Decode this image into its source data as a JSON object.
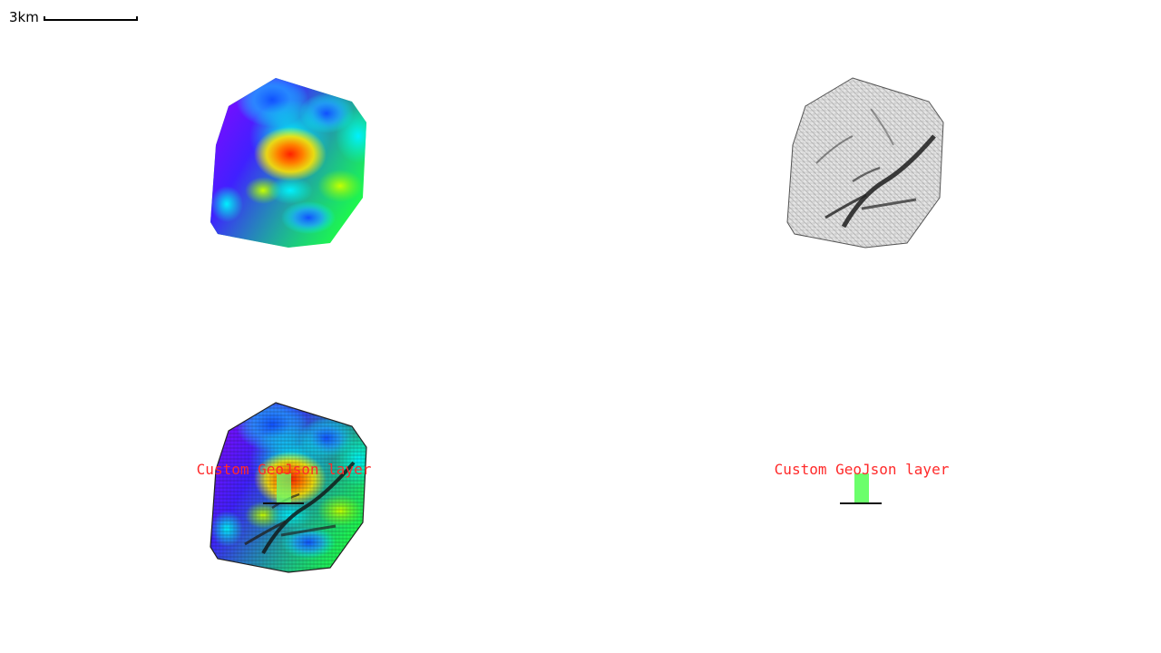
{
  "scale_bar": {
    "label": "3km"
  },
  "panels": [
    {
      "name": "colormap-panel",
      "layer": "colormap"
    },
    {
      "name": "hillshade-panel",
      "layer": "hillshade"
    },
    {
      "name": "combined-panel",
      "layer": "combined",
      "label": "Custom GeoJson layer"
    },
    {
      "name": "geojson-panel",
      "layer": "geojson",
      "label": "Custom GeoJson layer"
    }
  ],
  "colors": {
    "label_color": "#ff2a2a",
    "outline": "#222222",
    "geojson_fill": "#6bff6b"
  }
}
